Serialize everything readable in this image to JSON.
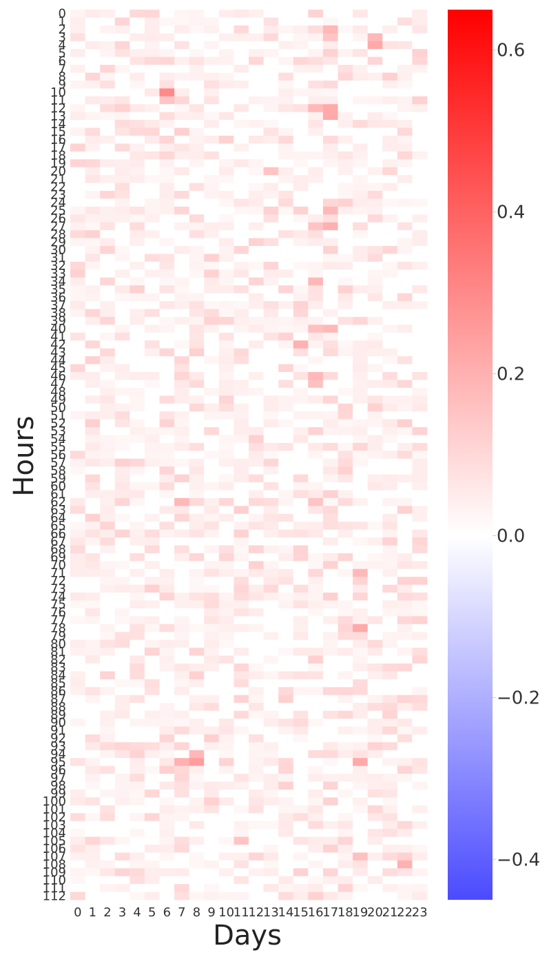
{
  "chart_data": {
    "type": "heatmap",
    "xlabel": "Days",
    "ylabel": "Hours",
    "x_categories": [
      "0",
      "1",
      "2",
      "3",
      "4",
      "5",
      "6",
      "7",
      "8",
      "9",
      "10",
      "11",
      "12",
      "13",
      "14",
      "15",
      "16",
      "17",
      "18",
      "19",
      "20",
      "21",
      "22",
      "23"
    ],
    "y_categories_count": 113,
    "y_range": [
      0,
      112
    ],
    "colorbar": {
      "colormap": "bwr",
      "vmin": -0.45,
      "vmax": 0.65,
      "ticks": [
        0.6,
        0.4,
        0.2,
        0.0,
        -0.2,
        -0.4
      ],
      "tick_labels": [
        "0.6",
        "0.4",
        "0.2",
        "0.0",
        "−0.2",
        "−0.4"
      ]
    },
    "cells_note": "values approximate; mostly 0.0–0.1 with hotspots up to ~0.3",
    "hotspots": [
      {
        "day": 6,
        "hour": 10,
        "value": 0.3
      },
      {
        "day": 6,
        "hour": 11,
        "value": 0.15
      },
      {
        "day": 17,
        "hour": 12,
        "value": 0.22
      },
      {
        "day": 17,
        "hour": 13,
        "value": 0.22
      },
      {
        "day": 16,
        "hour": 12,
        "value": 0.18
      },
      {
        "day": 20,
        "hour": 3,
        "value": 0.18
      },
      {
        "day": 20,
        "hour": 4,
        "value": 0.22
      },
      {
        "day": 17,
        "hour": 2,
        "value": 0.18
      },
      {
        "day": 17,
        "hour": 3,
        "value": 0.15
      },
      {
        "day": 17,
        "hour": 25,
        "value": 0.18
      },
      {
        "day": 17,
        "hour": 27,
        "value": 0.2
      },
      {
        "day": 16,
        "hour": 27,
        "value": 0.15
      },
      {
        "day": 16,
        "hour": 34,
        "value": 0.18
      },
      {
        "day": 17,
        "hour": 40,
        "value": 0.18
      },
      {
        "day": 16,
        "hour": 40,
        "value": 0.16
      },
      {
        "day": 15,
        "hour": 42,
        "value": 0.2
      },
      {
        "day": 16,
        "hour": 46,
        "value": 0.18
      },
      {
        "day": 16,
        "hour": 47,
        "value": 0.16
      },
      {
        "day": 7,
        "hour": 62,
        "value": 0.18
      },
      {
        "day": 16,
        "hour": 62,
        "value": 0.15
      },
      {
        "day": 19,
        "hour": 71,
        "value": 0.18
      },
      {
        "day": 19,
        "hour": 78,
        "value": 0.22
      },
      {
        "day": 7,
        "hour": 95,
        "value": 0.2
      },
      {
        "day": 8,
        "hour": 95,
        "value": 0.25
      },
      {
        "day": 8,
        "hour": 94,
        "value": 0.18
      },
      {
        "day": 19,
        "hour": 95,
        "value": 0.22
      },
      {
        "day": 22,
        "hour": 108,
        "value": 0.2
      },
      {
        "day": 19,
        "hour": 107,
        "value": 0.16
      },
      {
        "day": 11,
        "hour": 105,
        "value": 0.15
      },
      {
        "day": 13,
        "hour": 20,
        "value": 0.15
      },
      {
        "day": 3,
        "hour": 57,
        "value": 0.12
      },
      {
        "day": 12,
        "hour": 54,
        "value": 0.12
      }
    ]
  }
}
